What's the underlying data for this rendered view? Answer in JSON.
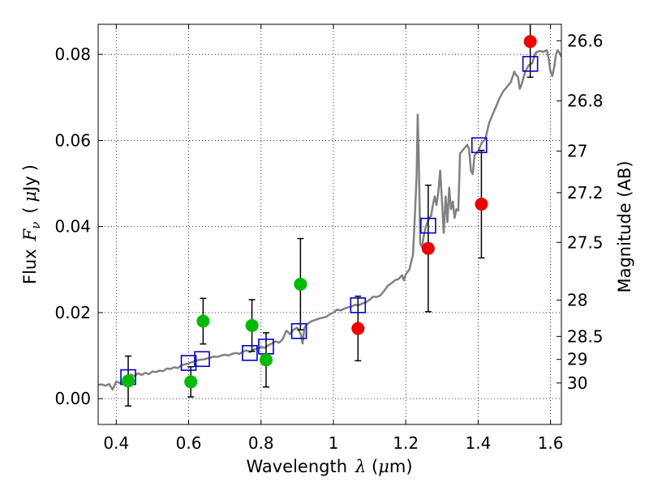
{
  "chart_data": {
    "type": "scatter",
    "xlabel_text": "Wavelength",
    "xlabel_symbol": "λ",
    "xlabel_unit_open": " (",
    "xlabel_unit_mu": "μ",
    "xlabel_unit_rest": "m)",
    "ylabel_text": "Flux",
    "ylabel_symbol": "F",
    "ylabel_subscript": "ν",
    "ylabel_unit_open": "(",
    "ylabel_unit_mu": "μ",
    "ylabel_unit_rest": "Jy",
    "ylabel_unit_close": ")",
    "y2label": "Magnitude (AB)",
    "xlim": [
      0.35,
      1.63
    ],
    "ylim": [
      -0.006,
      0.087
    ],
    "x_ticks": [
      0.4,
      0.6,
      0.8,
      1.0,
      1.2,
      1.4,
      1.6
    ],
    "x_tick_labels": [
      "0.4",
      "0.6",
      "0.8",
      "1",
      "1.2",
      "1.4",
      "1.6"
    ],
    "y_ticks": [
      0.0,
      0.02,
      0.04,
      0.06,
      0.08
    ],
    "y_tick_labels": [
      "0.00",
      "0.02",
      "0.04",
      "0.06",
      "0.08"
    ],
    "mag_ticks": [
      26.6,
      26.8,
      27,
      27.2,
      27.5,
      28,
      28.5,
      29,
      30
    ],
    "mag_tick_labels": [
      "26.6",
      "26.8",
      "27",
      "27.2",
      "27.5",
      "28",
      "28.5",
      "29",
      "30"
    ],
    "grid": true,
    "colors": {
      "template": "#808080",
      "green": "#00bb00",
      "red": "#ee0000",
      "square": "#0000cc",
      "errorbar": "#000000"
    },
    "green_points": [
      {
        "x": 0.433,
        "y": 0.0041,
        "yerr": 0.0058
      },
      {
        "x": 0.606,
        "y": 0.0039,
        "yerr": 0.0035
      },
      {
        "x": 0.64,
        "y": 0.018,
        "yerr": 0.0053
      },
      {
        "x": 0.775,
        "y": 0.017,
        "yerr": 0.006
      },
      {
        "x": 0.814,
        "y": 0.009,
        "yerr": 0.0063
      },
      {
        "x": 0.909,
        "y": 0.0266,
        "yerr": 0.0106
      }
    ],
    "red_points": [
      {
        "x": 1.068,
        "y": 0.0163,
        "yerr": 0.0075
      },
      {
        "x": 1.262,
        "y": 0.0349,
        "yerr": 0.0147
      },
      {
        "x": 1.409,
        "y": 0.0452,
        "yerr": 0.0125
      },
      {
        "x": 1.544,
        "y": 0.083,
        "yerr": 0.0083
      }
    ],
    "model_squares": [
      {
        "x": 0.433,
        "y": 0.005
      },
      {
        "x": 0.6,
        "y": 0.0083
      },
      {
        "x": 0.637,
        "y": 0.0092
      },
      {
        "x": 0.769,
        "y": 0.0106
      },
      {
        "x": 0.814,
        "y": 0.0121
      },
      {
        "x": 0.905,
        "y": 0.0157
      },
      {
        "x": 1.068,
        "y": 0.0217
      },
      {
        "x": 1.262,
        "y": 0.0402
      },
      {
        "x": 1.403,
        "y": 0.0589
      },
      {
        "x": 1.544,
        "y": 0.0778
      }
    ],
    "template_spectrum": [
      [
        0.35,
        0.0032
      ],
      [
        0.36,
        0.0033
      ],
      [
        0.37,
        0.003
      ],
      [
        0.38,
        0.0034
      ],
      [
        0.39,
        0.0021
      ],
      [
        0.4,
        0.004
      ],
      [
        0.41,
        0.0036
      ],
      [
        0.42,
        0.0039
      ],
      [
        0.43,
        0.0046
      ],
      [
        0.44,
        0.0056
      ],
      [
        0.45,
        0.0052
      ],
      [
        0.46,
        0.0059
      ],
      [
        0.47,
        0.0055
      ],
      [
        0.48,
        0.006
      ],
      [
        0.49,
        0.0057
      ],
      [
        0.5,
        0.0063
      ],
      [
        0.51,
        0.0062
      ],
      [
        0.52,
        0.0065
      ],
      [
        0.53,
        0.0064
      ],
      [
        0.54,
        0.007
      ],
      [
        0.55,
        0.0069
      ],
      [
        0.56,
        0.0073
      ],
      [
        0.57,
        0.0071
      ],
      [
        0.58,
        0.0077
      ],
      [
        0.59,
        0.008
      ],
      [
        0.6,
        0.0082
      ],
      [
        0.61,
        0.0085
      ],
      [
        0.62,
        0.0088
      ],
      [
        0.63,
        0.009
      ],
      [
        0.64,
        0.0091
      ],
      [
        0.65,
        0.0093
      ],
      [
        0.66,
        0.0095
      ],
      [
        0.67,
        0.0098
      ],
      [
        0.68,
        0.0097
      ],
      [
        0.69,
        0.01
      ],
      [
        0.7,
        0.0102
      ],
      [
        0.71,
        0.01
      ],
      [
        0.72,
        0.0104
      ],
      [
        0.73,
        0.0106
      ],
      [
        0.74,
        0.0104
      ],
      [
        0.75,
        0.0109
      ],
      [
        0.76,
        0.0112
      ],
      [
        0.77,
        0.0108
      ],
      [
        0.78,
        0.0114
      ],
      [
        0.79,
        0.0117
      ],
      [
        0.8,
        0.012
      ],
      [
        0.81,
        0.0118
      ],
      [
        0.82,
        0.0124
      ],
      [
        0.83,
        0.0128
      ],
      [
        0.84,
        0.0133
      ],
      [
        0.85,
        0.013
      ],
      [
        0.86,
        0.0138
      ],
      [
        0.87,
        0.0158
      ],
      [
        0.88,
        0.015
      ],
      [
        0.89,
        0.016
      ],
      [
        0.9,
        0.0165
      ],
      [
        0.91,
        0.015
      ],
      [
        0.915,
        0.0128
      ],
      [
        0.92,
        0.0165
      ],
      [
        0.93,
        0.0175
      ],
      [
        0.94,
        0.018
      ],
      [
        0.95,
        0.0183
      ],
      [
        0.96,
        0.0186
      ],
      [
        0.97,
        0.0188
      ],
      [
        0.98,
        0.019
      ],
      [
        0.99,
        0.0196
      ],
      [
        1.0,
        0.02
      ],
      [
        1.01,
        0.0207
      ],
      [
        1.02,
        0.0205
      ],
      [
        1.03,
        0.0209
      ],
      [
        1.04,
        0.0212
      ],
      [
        1.05,
        0.0214
      ],
      [
        1.06,
        0.0218
      ],
      [
        1.07,
        0.0217
      ],
      [
        1.08,
        0.0221
      ],
      [
        1.09,
        0.0224
      ],
      [
        1.1,
        0.023
      ],
      [
        1.11,
        0.0237
      ],
      [
        1.12,
        0.0236
      ],
      [
        1.13,
        0.024
      ],
      [
        1.14,
        0.025
      ],
      [
        1.15,
        0.0262
      ],
      [
        1.16,
        0.0268
      ],
      [
        1.17,
        0.0275
      ],
      [
        1.18,
        0.0278
      ],
      [
        1.19,
        0.0287
      ],
      [
        1.195,
        0.0275
      ],
      [
        1.2,
        0.0289
      ],
      [
        1.21,
        0.03
      ],
      [
        1.22,
        0.0335
      ],
      [
        1.225,
        0.042
      ],
      [
        1.23,
        0.052
      ],
      [
        1.233,
        0.066
      ],
      [
        1.236,
        0.056
      ],
      [
        1.24,
        0.036
      ],
      [
        1.245,
        0.0352
      ],
      [
        1.25,
        0.038
      ],
      [
        1.255,
        0.0398
      ],
      [
        1.26,
        0.041
      ],
      [
        1.265,
        0.042
      ],
      [
        1.27,
        0.0425
      ],
      [
        1.275,
        0.045
      ],
      [
        1.28,
        0.047
      ],
      [
        1.285,
        0.045
      ],
      [
        1.29,
        0.048
      ],
      [
        1.295,
        0.053
      ],
      [
        1.3,
        0.046
      ],
      [
        1.305,
        0.0385
      ],
      [
        1.31,
        0.047
      ],
      [
        1.315,
        0.041
      ],
      [
        1.32,
        0.049
      ],
      [
        1.325,
        0.044
      ],
      [
        1.33,
        0.0458
      ],
      [
        1.335,
        0.042
      ],
      [
        1.34,
        0.044
      ],
      [
        1.345,
        0.0437
      ],
      [
        1.35,
        0.057
      ],
      [
        1.36,
        0.058
      ],
      [
        1.37,
        0.059
      ],
      [
        1.375,
        0.058
      ],
      [
        1.38,
        0.053
      ],
      [
        1.385,
        0.0522
      ],
      [
        1.39,
        0.0565
      ],
      [
        1.4,
        0.0575
      ],
      [
        1.41,
        0.0595
      ],
      [
        1.42,
        0.0603
      ],
      [
        1.43,
        0.064
      ],
      [
        1.44,
        0.066
      ],
      [
        1.45,
        0.068
      ],
      [
        1.46,
        0.07
      ],
      [
        1.47,
        0.0715
      ],
      [
        1.475,
        0.072
      ],
      [
        1.48,
        0.0725
      ],
      [
        1.49,
        0.0735
      ],
      [
        1.5,
        0.076
      ],
      [
        1.505,
        0.0752
      ],
      [
        1.51,
        0.0748
      ],
      [
        1.515,
        0.072
      ],
      [
        1.52,
        0.073
      ],
      [
        1.53,
        0.076
      ],
      [
        1.54,
        0.0775
      ],
      [
        1.55,
        0.078
      ],
      [
        1.555,
        0.0795
      ],
      [
        1.56,
        0.0805
      ],
      [
        1.57,
        0.0808
      ],
      [
        1.58,
        0.0806
      ],
      [
        1.59,
        0.081
      ],
      [
        1.595,
        0.079
      ],
      [
        1.6,
        0.076
      ],
      [
        1.605,
        0.075
      ],
      [
        1.61,
        0.077
      ],
      [
        1.615,
        0.08
      ],
      [
        1.62,
        0.081
      ],
      [
        1.63,
        0.0795
      ]
    ]
  }
}
